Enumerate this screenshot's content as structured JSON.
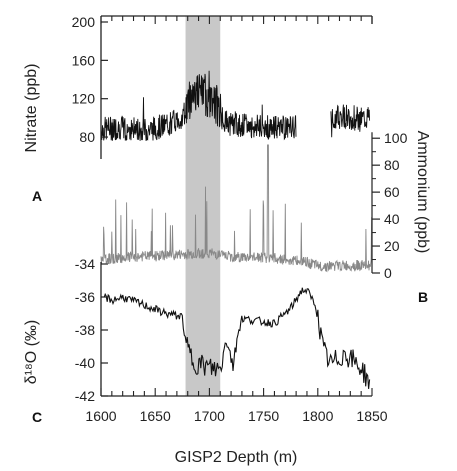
{
  "chart_data": {
    "type": "line",
    "x_axis": {
      "label": "GISP2 Depth (m)",
      "range": [
        1600,
        1850
      ],
      "ticks": [
        "1600",
        "1650",
        "1700",
        "1750",
        "1800",
        "1850"
      ]
    },
    "highlight": {
      "x_range": [
        1678,
        1710
      ],
      "color": "#c8c8c8"
    },
    "panels": [
      {
        "panel_label": "A",
        "ylabel": "Nitrate (ppb)",
        "axis_side": "left",
        "ylim": [
          30,
          200
        ],
        "ticks": [
          "80",
          "120",
          "160",
          "200"
        ],
        "tick_values": [
          80,
          120,
          160,
          200
        ],
        "color": "#111111",
        "gaps": [
          [
            1780,
            1812
          ]
        ],
        "series": [
          {
            "name": "",
            "x": [
              1600,
              1620,
              1640,
              1660,
              1675,
              1685,
              1695,
              1705,
              1715,
              1730,
              1750,
              1770,
              1780,
              1812,
              1825,
              1840,
              1848
            ],
            "y": [
              88,
              90,
              87,
              92,
              100,
              128,
              125,
              118,
              95,
              92,
              90,
              90,
              90,
              100,
              102,
              98,
              100
            ]
          }
        ]
      },
      {
        "panel_label": "B",
        "ylabel": "Ammonium (ppb)",
        "axis_side": "right",
        "ylim": [
          0,
          115
        ],
        "ticks": [
          "0",
          "20",
          "40",
          "60",
          "80",
          "100"
        ],
        "tick_values": [
          0,
          20,
          40,
          60,
          80,
          100
        ],
        "color": "#888888",
        "series": [
          {
            "name": "",
            "x": [
              1600,
              1630,
              1660,
              1680,
              1700,
              1720,
              1760,
              1790,
              1800,
              1850
            ],
            "y": [
              10,
              12,
              13,
              14,
              15,
              12,
              11,
              8,
              5,
              6
            ]
          }
        ]
      },
      {
        "panel_label": "C",
        "ylabel": "δ¹⁸O (‰)",
        "axis_side": "left",
        "ylim": [
          -42,
          -34
        ],
        "ticks": [
          "-34",
          "-36",
          "-38",
          "-40",
          "-42"
        ],
        "tick_values": [
          -34,
          -36,
          -38,
          -40,
          -42
        ],
        "color": "#111111",
        "series": [
          {
            "name": "",
            "x": [
              1600,
              1610,
              1620,
              1640,
              1660,
              1675,
              1678,
              1685,
              1700,
              1710,
              1715,
              1722,
              1730,
              1760,
              1775,
              1785,
              1790,
              1798,
              1805,
              1812,
              1825,
              1840,
              1848
            ],
            "y": [
              -35.9,
              -36.2,
              -36.0,
              -36.5,
              -37.0,
              -37.2,
              -38.8,
              -39.9,
              -40.3,
              -40.4,
              -38.7,
              -39.4,
              -37.3,
              -37.6,
              -36.7,
              -35.6,
              -35.6,
              -36.5,
              -39.2,
              -40.1,
              -39.4,
              -40.3,
              -41.2
            ]
          }
        ]
      }
    ]
  }
}
